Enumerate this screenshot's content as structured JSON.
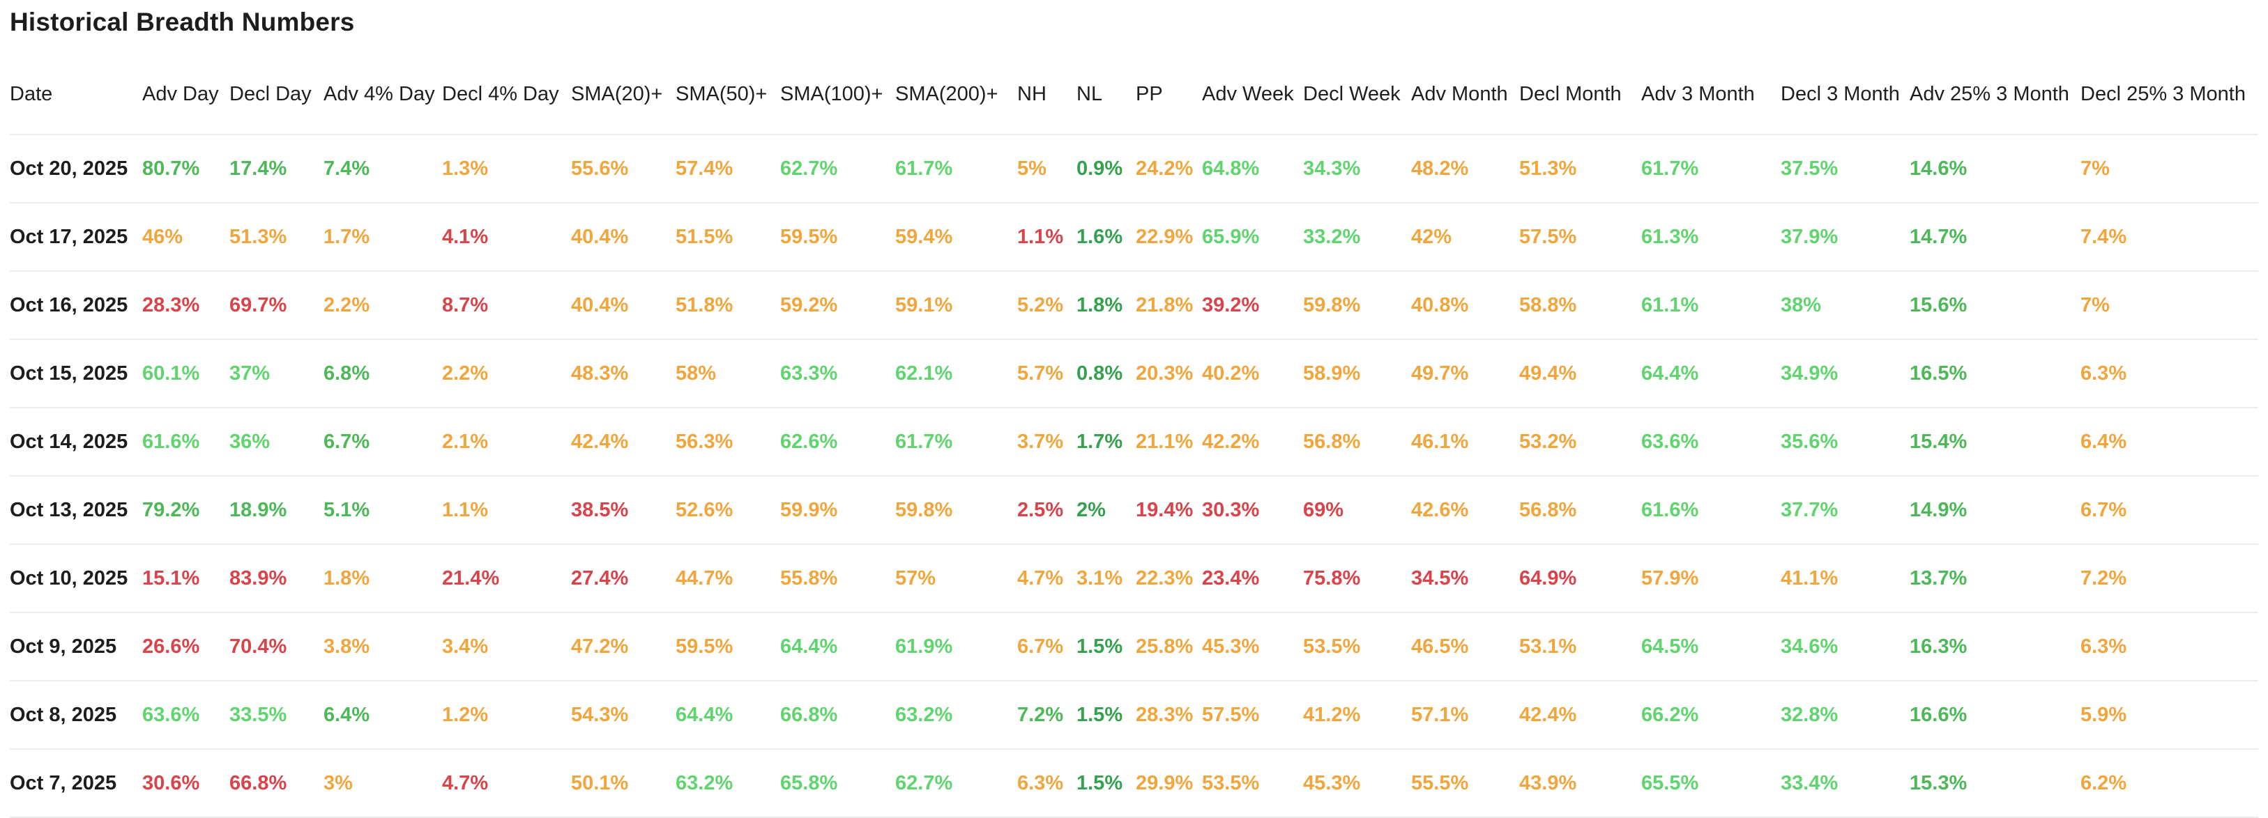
{
  "page": {
    "title": "Historical Breadth Numbers"
  },
  "colors": {
    "g": "#4CB857",
    "lg": "#60D46E",
    "dg": "#35A14E",
    "o": "#F0A63C",
    "r": "#D9434A"
  },
  "table": {
    "columns": [
      "Date",
      "Adv Day",
      "Decl Day",
      "Adv 4% Day",
      "Decl 4% Day",
      "SMA(20)+",
      "SMA(50)+",
      "SMA(100)+",
      "SMA(200)+",
      "NH",
      "NL",
      "PP",
      "Adv Week",
      "Decl Week",
      "Adv Month",
      "Decl Month",
      "Adv 3 Month",
      "Decl 3 Month",
      "Adv 25% 3 Month",
      "Decl 25% 3 Month"
    ],
    "rows": [
      {
        "date": "Oct 20, 2025",
        "cells": [
          {
            "v": "80.7%",
            "c": "g"
          },
          {
            "v": "17.4%",
            "c": "g"
          },
          {
            "v": "7.4%",
            "c": "g"
          },
          {
            "v": "1.3%",
            "c": "o"
          },
          {
            "v": "55.6%",
            "c": "o"
          },
          {
            "v": "57.4%",
            "c": "o"
          },
          {
            "v": "62.7%",
            "c": "lg"
          },
          {
            "v": "61.7%",
            "c": "lg"
          },
          {
            "v": "5%",
            "c": "o"
          },
          {
            "v": "0.9%",
            "c": "dg"
          },
          {
            "v": "24.2%",
            "c": "o"
          },
          {
            "v": "64.8%",
            "c": "lg"
          },
          {
            "v": "34.3%",
            "c": "lg"
          },
          {
            "v": "48.2%",
            "c": "o"
          },
          {
            "v": "51.3%",
            "c": "o"
          },
          {
            "v": "61.7%",
            "c": "lg"
          },
          {
            "v": "37.5%",
            "c": "lg"
          },
          {
            "v": "14.6%",
            "c": "g"
          },
          {
            "v": "7%",
            "c": "o"
          }
        ]
      },
      {
        "date": "Oct 17, 2025",
        "cells": [
          {
            "v": "46%",
            "c": "o"
          },
          {
            "v": "51.3%",
            "c": "o"
          },
          {
            "v": "1.7%",
            "c": "o"
          },
          {
            "v": "4.1%",
            "c": "r"
          },
          {
            "v": "40.4%",
            "c": "o"
          },
          {
            "v": "51.5%",
            "c": "o"
          },
          {
            "v": "59.5%",
            "c": "o"
          },
          {
            "v": "59.4%",
            "c": "o"
          },
          {
            "v": "1.1%",
            "c": "r"
          },
          {
            "v": "1.6%",
            "c": "dg"
          },
          {
            "v": "22.9%",
            "c": "o"
          },
          {
            "v": "65.9%",
            "c": "lg"
          },
          {
            "v": "33.2%",
            "c": "lg"
          },
          {
            "v": "42%",
            "c": "o"
          },
          {
            "v": "57.5%",
            "c": "o"
          },
          {
            "v": "61.3%",
            "c": "lg"
          },
          {
            "v": "37.9%",
            "c": "lg"
          },
          {
            "v": "14.7%",
            "c": "g"
          },
          {
            "v": "7.4%",
            "c": "o"
          }
        ]
      },
      {
        "date": "Oct 16, 2025",
        "cells": [
          {
            "v": "28.3%",
            "c": "r"
          },
          {
            "v": "69.7%",
            "c": "r"
          },
          {
            "v": "2.2%",
            "c": "o"
          },
          {
            "v": "8.7%",
            "c": "r"
          },
          {
            "v": "40.4%",
            "c": "o"
          },
          {
            "v": "51.8%",
            "c": "o"
          },
          {
            "v": "59.2%",
            "c": "o"
          },
          {
            "v": "59.1%",
            "c": "o"
          },
          {
            "v": "5.2%",
            "c": "o"
          },
          {
            "v": "1.8%",
            "c": "dg"
          },
          {
            "v": "21.8%",
            "c": "o"
          },
          {
            "v": "39.2%",
            "c": "r"
          },
          {
            "v": "59.8%",
            "c": "o"
          },
          {
            "v": "40.8%",
            "c": "o"
          },
          {
            "v": "58.8%",
            "c": "o"
          },
          {
            "v": "61.1%",
            "c": "lg"
          },
          {
            "v": "38%",
            "c": "lg"
          },
          {
            "v": "15.6%",
            "c": "g"
          },
          {
            "v": "7%",
            "c": "o"
          }
        ]
      },
      {
        "date": "Oct 15, 2025",
        "cells": [
          {
            "v": "60.1%",
            "c": "lg"
          },
          {
            "v": "37%",
            "c": "lg"
          },
          {
            "v": "6.8%",
            "c": "g"
          },
          {
            "v": "2.2%",
            "c": "o"
          },
          {
            "v": "48.3%",
            "c": "o"
          },
          {
            "v": "58%",
            "c": "o"
          },
          {
            "v": "63.3%",
            "c": "lg"
          },
          {
            "v": "62.1%",
            "c": "lg"
          },
          {
            "v": "5.7%",
            "c": "o"
          },
          {
            "v": "0.8%",
            "c": "dg"
          },
          {
            "v": "20.3%",
            "c": "o"
          },
          {
            "v": "40.2%",
            "c": "o"
          },
          {
            "v": "58.9%",
            "c": "o"
          },
          {
            "v": "49.7%",
            "c": "o"
          },
          {
            "v": "49.4%",
            "c": "o"
          },
          {
            "v": "64.4%",
            "c": "lg"
          },
          {
            "v": "34.9%",
            "c": "lg"
          },
          {
            "v": "16.5%",
            "c": "g"
          },
          {
            "v": "6.3%",
            "c": "o"
          }
        ]
      },
      {
        "date": "Oct 14, 2025",
        "cells": [
          {
            "v": "61.6%",
            "c": "lg"
          },
          {
            "v": "36%",
            "c": "lg"
          },
          {
            "v": "6.7%",
            "c": "g"
          },
          {
            "v": "2.1%",
            "c": "o"
          },
          {
            "v": "42.4%",
            "c": "o"
          },
          {
            "v": "56.3%",
            "c": "o"
          },
          {
            "v": "62.6%",
            "c": "lg"
          },
          {
            "v": "61.7%",
            "c": "lg"
          },
          {
            "v": "3.7%",
            "c": "o"
          },
          {
            "v": "1.7%",
            "c": "dg"
          },
          {
            "v": "21.1%",
            "c": "o"
          },
          {
            "v": "42.2%",
            "c": "o"
          },
          {
            "v": "56.8%",
            "c": "o"
          },
          {
            "v": "46.1%",
            "c": "o"
          },
          {
            "v": "53.2%",
            "c": "o"
          },
          {
            "v": "63.6%",
            "c": "lg"
          },
          {
            "v": "35.6%",
            "c": "lg"
          },
          {
            "v": "15.4%",
            "c": "g"
          },
          {
            "v": "6.4%",
            "c": "o"
          }
        ]
      },
      {
        "date": "Oct 13, 2025",
        "cells": [
          {
            "v": "79.2%",
            "c": "g"
          },
          {
            "v": "18.9%",
            "c": "g"
          },
          {
            "v": "5.1%",
            "c": "g"
          },
          {
            "v": "1.1%",
            "c": "o"
          },
          {
            "v": "38.5%",
            "c": "r"
          },
          {
            "v": "52.6%",
            "c": "o"
          },
          {
            "v": "59.9%",
            "c": "o"
          },
          {
            "v": "59.8%",
            "c": "o"
          },
          {
            "v": "2.5%",
            "c": "r"
          },
          {
            "v": "2%",
            "c": "dg"
          },
          {
            "v": "19.4%",
            "c": "r"
          },
          {
            "v": "30.3%",
            "c": "r"
          },
          {
            "v": "69%",
            "c": "r"
          },
          {
            "v": "42.6%",
            "c": "o"
          },
          {
            "v": "56.8%",
            "c": "o"
          },
          {
            "v": "61.6%",
            "c": "lg"
          },
          {
            "v": "37.7%",
            "c": "lg"
          },
          {
            "v": "14.9%",
            "c": "g"
          },
          {
            "v": "6.7%",
            "c": "o"
          }
        ]
      },
      {
        "date": "Oct 10, 2025",
        "cells": [
          {
            "v": "15.1%",
            "c": "r"
          },
          {
            "v": "83.9%",
            "c": "r"
          },
          {
            "v": "1.8%",
            "c": "o"
          },
          {
            "v": "21.4%",
            "c": "r"
          },
          {
            "v": "27.4%",
            "c": "r"
          },
          {
            "v": "44.7%",
            "c": "o"
          },
          {
            "v": "55.8%",
            "c": "o"
          },
          {
            "v": "57%",
            "c": "o"
          },
          {
            "v": "4.7%",
            "c": "o"
          },
          {
            "v": "3.1%",
            "c": "o"
          },
          {
            "v": "22.3%",
            "c": "o"
          },
          {
            "v": "23.4%",
            "c": "r"
          },
          {
            "v": "75.8%",
            "c": "r"
          },
          {
            "v": "34.5%",
            "c": "r"
          },
          {
            "v": "64.9%",
            "c": "r"
          },
          {
            "v": "57.9%",
            "c": "o"
          },
          {
            "v": "41.1%",
            "c": "o"
          },
          {
            "v": "13.7%",
            "c": "g"
          },
          {
            "v": "7.2%",
            "c": "o"
          }
        ]
      },
      {
        "date": "Oct 9, 2025",
        "cells": [
          {
            "v": "26.6%",
            "c": "r"
          },
          {
            "v": "70.4%",
            "c": "r"
          },
          {
            "v": "3.8%",
            "c": "o"
          },
          {
            "v": "3.4%",
            "c": "o"
          },
          {
            "v": "47.2%",
            "c": "o"
          },
          {
            "v": "59.5%",
            "c": "o"
          },
          {
            "v": "64.4%",
            "c": "lg"
          },
          {
            "v": "61.9%",
            "c": "lg"
          },
          {
            "v": "6.7%",
            "c": "o"
          },
          {
            "v": "1.5%",
            "c": "dg"
          },
          {
            "v": "25.8%",
            "c": "o"
          },
          {
            "v": "45.3%",
            "c": "o"
          },
          {
            "v": "53.5%",
            "c": "o"
          },
          {
            "v": "46.5%",
            "c": "o"
          },
          {
            "v": "53.1%",
            "c": "o"
          },
          {
            "v": "64.5%",
            "c": "lg"
          },
          {
            "v": "34.6%",
            "c": "lg"
          },
          {
            "v": "16.3%",
            "c": "g"
          },
          {
            "v": "6.3%",
            "c": "o"
          }
        ]
      },
      {
        "date": "Oct 8, 2025",
        "cells": [
          {
            "v": "63.6%",
            "c": "lg"
          },
          {
            "v": "33.5%",
            "c": "lg"
          },
          {
            "v": "6.4%",
            "c": "g"
          },
          {
            "v": "1.2%",
            "c": "o"
          },
          {
            "v": "54.3%",
            "c": "o"
          },
          {
            "v": "64.4%",
            "c": "lg"
          },
          {
            "v": "66.8%",
            "c": "lg"
          },
          {
            "v": "63.2%",
            "c": "lg"
          },
          {
            "v": "7.2%",
            "c": "g"
          },
          {
            "v": "1.5%",
            "c": "dg"
          },
          {
            "v": "28.3%",
            "c": "o"
          },
          {
            "v": "57.5%",
            "c": "o"
          },
          {
            "v": "41.2%",
            "c": "o"
          },
          {
            "v": "57.1%",
            "c": "o"
          },
          {
            "v": "42.4%",
            "c": "o"
          },
          {
            "v": "66.2%",
            "c": "lg"
          },
          {
            "v": "32.8%",
            "c": "lg"
          },
          {
            "v": "16.6%",
            "c": "g"
          },
          {
            "v": "5.9%",
            "c": "o"
          }
        ]
      },
      {
        "date": "Oct 7, 2025",
        "cells": [
          {
            "v": "30.6%",
            "c": "r"
          },
          {
            "v": "66.8%",
            "c": "r"
          },
          {
            "v": "3%",
            "c": "o"
          },
          {
            "v": "4.7%",
            "c": "r"
          },
          {
            "v": "50.1%",
            "c": "o"
          },
          {
            "v": "63.2%",
            "c": "lg"
          },
          {
            "v": "65.8%",
            "c": "lg"
          },
          {
            "v": "62.7%",
            "c": "lg"
          },
          {
            "v": "6.3%",
            "c": "o"
          },
          {
            "v": "1.5%",
            "c": "dg"
          },
          {
            "v": "29.9%",
            "c": "o"
          },
          {
            "v": "53.5%",
            "c": "o"
          },
          {
            "v": "45.3%",
            "c": "o"
          },
          {
            "v": "55.5%",
            "c": "o"
          },
          {
            "v": "43.9%",
            "c": "o"
          },
          {
            "v": "65.5%",
            "c": "lg"
          },
          {
            "v": "33.4%",
            "c": "lg"
          },
          {
            "v": "15.3%",
            "c": "g"
          },
          {
            "v": "6.2%",
            "c": "o"
          }
        ]
      }
    ]
  }
}
